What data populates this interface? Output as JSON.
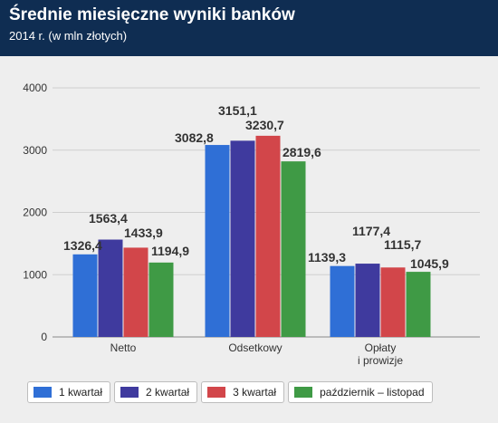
{
  "header": {
    "title": "Średnie miesięczne wyniki banków",
    "subtitle": "2014 r. (w mln złotych)"
  },
  "colors": {
    "header_bg": "#0f2d52",
    "series": [
      "#2f6fd6",
      "#3f3a9e",
      "#d2464a",
      "#3f9a45"
    ]
  },
  "chart_data": {
    "type": "bar",
    "title": "Średnie miesięczne wyniki banków",
    "subtitle": "2014 r. (w mln złotych)",
    "categories": [
      "Netto",
      "Odsetkowy",
      "Opłaty i prowizje"
    ],
    "category_lines": [
      [
        "Netto"
      ],
      [
        "Odsetkowy"
      ],
      [
        "Opłaty",
        "i prowizje"
      ]
    ],
    "series": [
      {
        "name": "1 kwartał",
        "values": [
          1326.4,
          3082.8,
          1139.3
        ],
        "labels": [
          "1326,4",
          "3082,8",
          "1139,3"
        ]
      },
      {
        "name": "2 kwartał",
        "values": [
          1563.4,
          3151.1,
          1177.4
        ],
        "labels": [
          "1563,4",
          "3151,1",
          "1177,4"
        ]
      },
      {
        "name": "3 kwartał",
        "values": [
          1433.9,
          3230.7,
          1115.7
        ],
        "labels": [
          "1433,9",
          "3230,7",
          "1115,7"
        ]
      },
      {
        "name": "październik – listopad",
        "values": [
          1194.9,
          2819.6,
          1045.9
        ],
        "labels": [
          "1194,9",
          "2819,6",
          "1045,9"
        ]
      }
    ],
    "ylim": [
      0,
      4000
    ],
    "yticks": [
      0,
      1000,
      2000,
      3000,
      4000
    ],
    "ytick_labels": [
      "0",
      "1000",
      "2000",
      "3000",
      "4000"
    ],
    "grid": true,
    "legend_position": "bottom"
  }
}
